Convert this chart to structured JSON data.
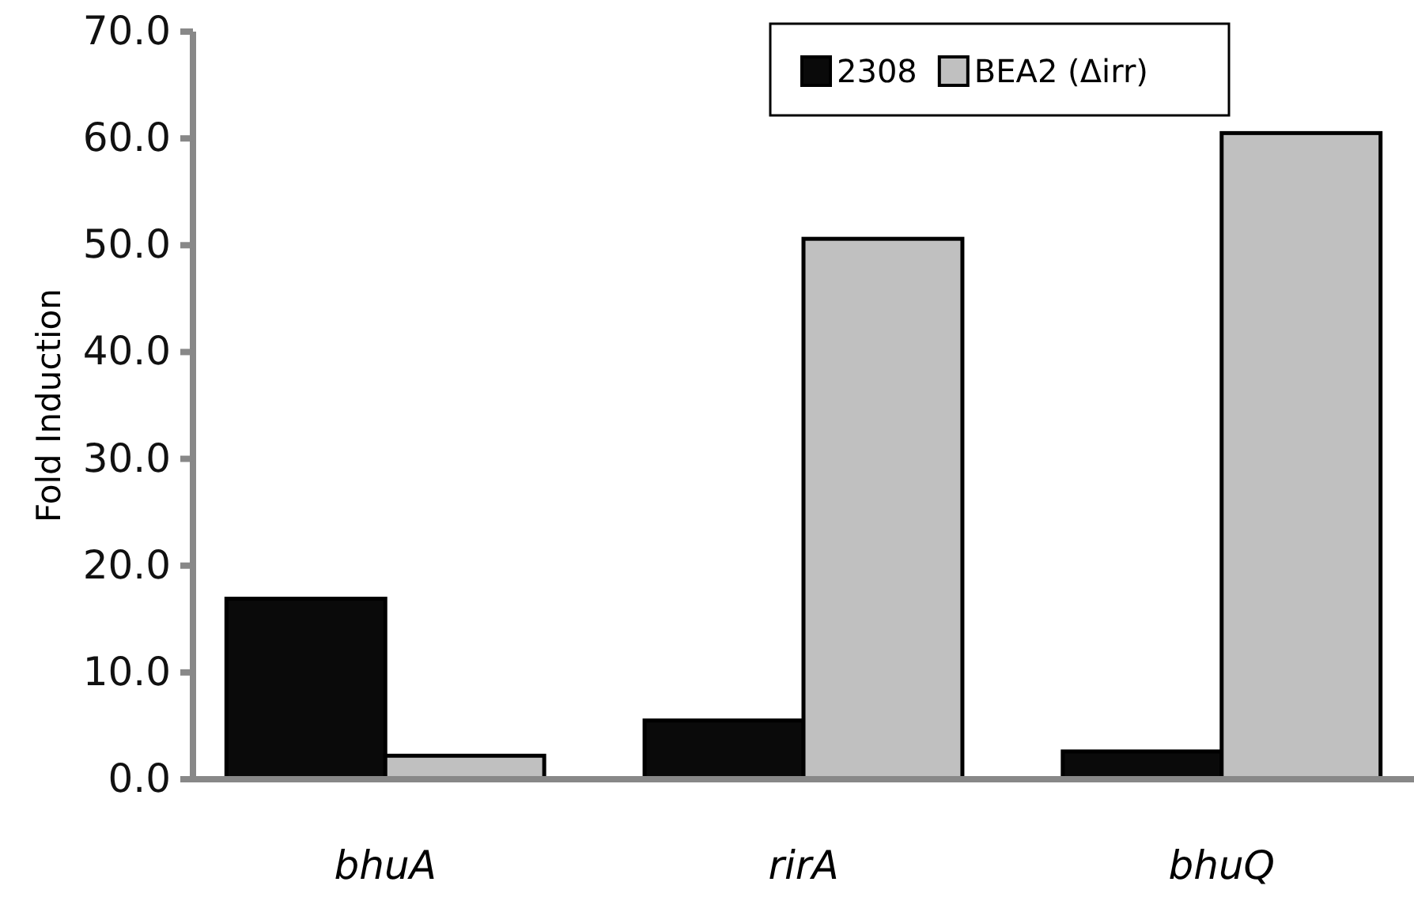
{
  "chart_data": {
    "type": "bar",
    "ylabel": "Fold Induction",
    "categories": [
      "bhuA",
      "rirA",
      "bhuQ"
    ],
    "series": [
      {
        "name": "2308",
        "color": "#0a0a0a",
        "values": [
          16.9,
          5.5,
          2.6
        ]
      },
      {
        "name": "BEA2 (Δirr)",
        "color": "#c0c0c0",
        "values": [
          2.2,
          50.6,
          60.5
        ]
      }
    ],
    "ylim": [
      0,
      70
    ],
    "yticks": [
      {
        "value": 0,
        "label": "0.0"
      },
      {
        "value": 10,
        "label": "10.0"
      },
      {
        "value": 20,
        "label": "20.0"
      },
      {
        "value": 30,
        "label": "30.0"
      },
      {
        "value": 40,
        "label": "40.0"
      },
      {
        "value": 50,
        "label": "50.0"
      },
      {
        "value": 60,
        "label": "60.0"
      },
      {
        "value": 70,
        "label": "70.0"
      }
    ],
    "grid": false,
    "legend": "top right"
  }
}
